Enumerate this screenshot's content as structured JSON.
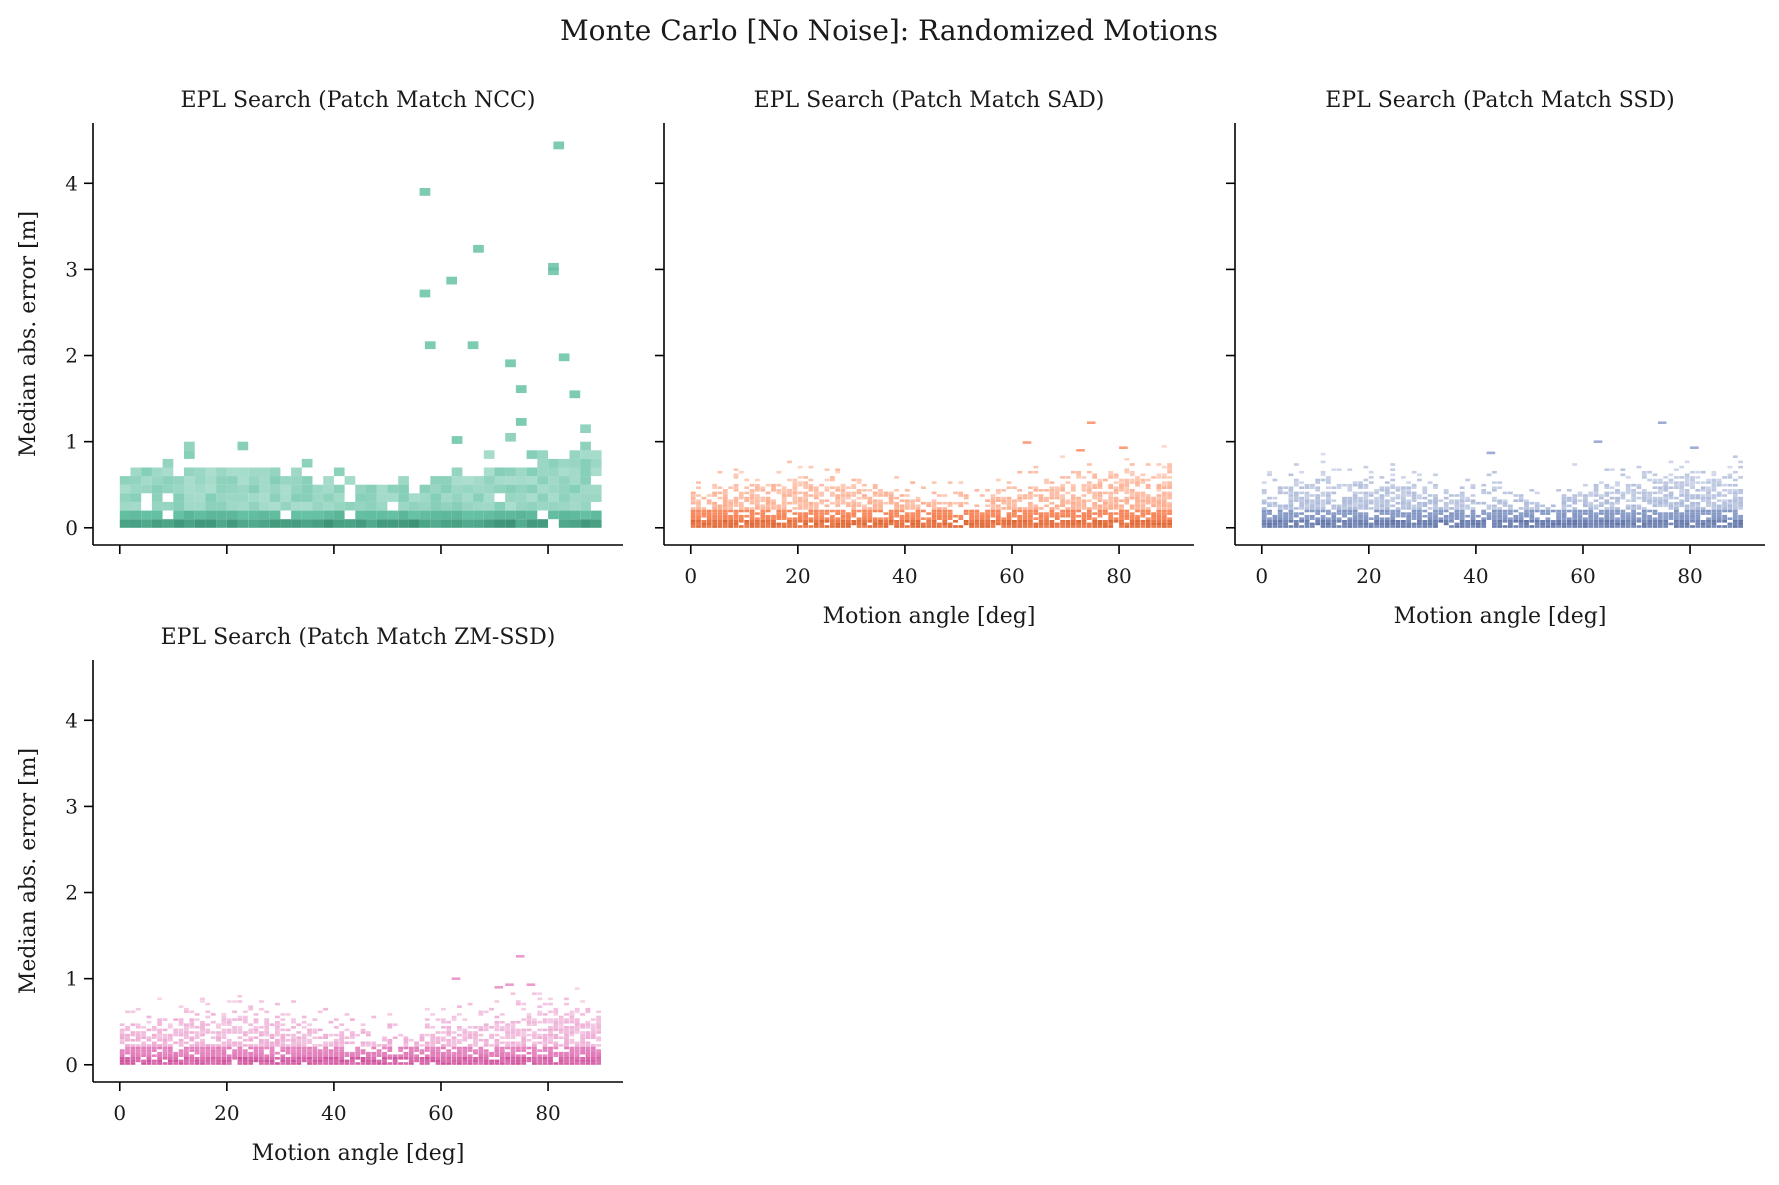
{
  "chart_data": {
    "type": "heatmap",
    "title": "Monte Carlo [No Noise]: Randomized Motions",
    "panels": [
      {
        "title": "EPL Search (Patch Match NCC)",
        "xlabel": "",
        "ylabel": "Median abs. error [m]",
        "show_x_tick_labels": false,
        "show_y_tick_labels": true,
        "color": "#66c2a5",
        "dark_color": "#1b6b50",
        "xlim": [
          -5,
          94
        ],
        "ylim": [
          -0.2,
          4.7
        ],
        "x_ticks": [
          0,
          20,
          40,
          60,
          80
        ],
        "y_ticks": [
          0,
          1,
          2,
          3,
          4
        ],
        "cell_width": 2,
        "cell_height": 0.1,
        "outliers": [
          [
            56,
            3.9
          ],
          [
            56,
            2.72
          ],
          [
            57,
            2.12
          ],
          [
            61,
            2.87
          ],
          [
            65,
            2.12
          ],
          [
            66,
            3.24
          ],
          [
            72,
            1.91
          ],
          [
            74,
            1.23
          ],
          [
            74,
            1.61
          ],
          [
            80,
            2.98
          ],
          [
            80,
            3.03
          ],
          [
            81,
            4.44
          ],
          [
            82,
            1.98
          ],
          [
            84,
            1.55
          ],
          [
            62,
            1.02
          ]
        ]
      },
      {
        "title": "EPL Search (Patch Match SAD)",
        "xlabel": "Motion angle [deg]",
        "ylabel": "",
        "show_x_tick_labels": true,
        "show_y_tick_labels": false,
        "color": "#fc8d62",
        "dark_color": "#c2450d",
        "xlim": [
          -5,
          94
        ],
        "ylim": [
          -0.2,
          4.7
        ],
        "x_ticks": [
          0,
          20,
          40,
          60,
          80
        ],
        "y_ticks": [
          0,
          1,
          2,
          3,
          4
        ],
        "cell_width": 1,
        "cell_height": 0.03,
        "outliers": [
          [
            62,
            0.99
          ],
          [
            74,
            1.22
          ],
          [
            80,
            0.93
          ],
          [
            72,
            0.9
          ]
        ]
      },
      {
        "title": "EPL Search (Patch Match SSD)",
        "xlabel": "Motion angle [deg]",
        "ylabel": "",
        "show_x_tick_labels": true,
        "show_y_tick_labels": false,
        "color": "#8da0cb",
        "dark_color": "#3b4f86",
        "xlim": [
          -5,
          94
        ],
        "ylim": [
          -0.2,
          4.7
        ],
        "x_ticks": [
          0,
          20,
          40,
          60,
          80
        ],
        "y_ticks": [
          0,
          1,
          2,
          3,
          4
        ],
        "cell_width": 1,
        "cell_height": 0.03,
        "outliers": [
          [
            62,
            1.0
          ],
          [
            74,
            1.22
          ],
          [
            80,
            0.93
          ],
          [
            42,
            0.87
          ]
        ]
      },
      {
        "title": "EPL Search (Patch Match ZM-SSD)",
        "xlabel": "Motion angle [deg]",
        "ylabel": "Median abs. error [m]",
        "show_x_tick_labels": true,
        "show_y_tick_labels": true,
        "color": "#e78ac3",
        "dark_color": "#b8237a",
        "xlim": [
          -5,
          94
        ],
        "ylim": [
          -0.2,
          4.7
        ],
        "x_ticks": [
          0,
          20,
          40,
          60,
          80
        ],
        "y_ticks": [
          0,
          1,
          2,
          3,
          4
        ],
        "cell_width": 1,
        "cell_height": 0.03,
        "outliers": [
          [
            62,
            1.0
          ],
          [
            74,
            1.26
          ],
          [
            72,
            0.93
          ],
          [
            76,
            0.93
          ],
          [
            70,
            0.9
          ]
        ]
      }
    ]
  }
}
